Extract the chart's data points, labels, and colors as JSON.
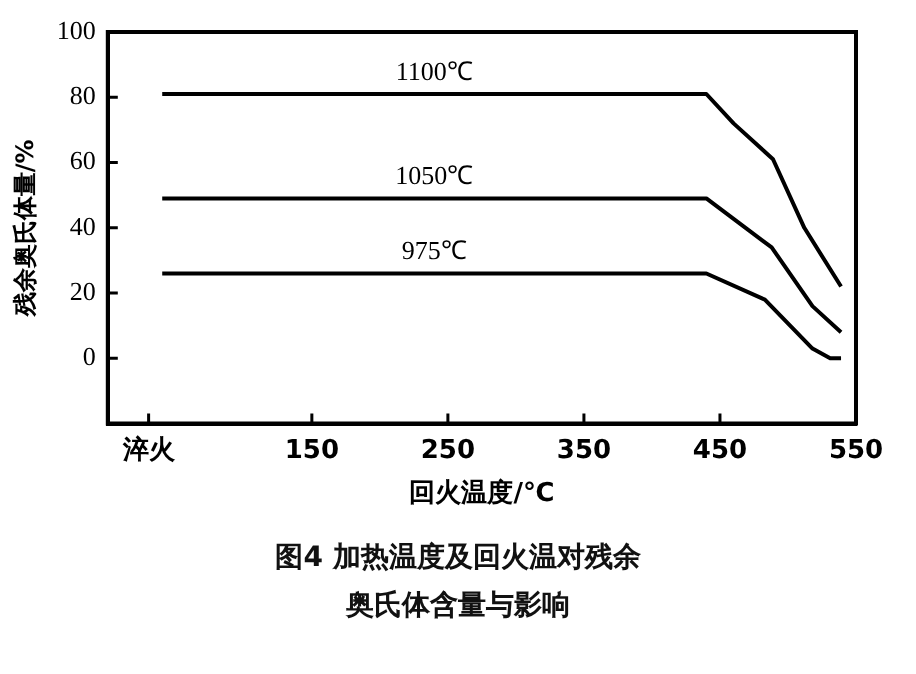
{
  "chart_data": {
    "type": "line",
    "xlabel": "回火温度/℃",
    "ylabel": "残余奥氏体量/%",
    "xlim": [
      0,
      550
    ],
    "xticks": [
      {
        "value": 30,
        "label": "淬火"
      },
      150,
      250,
      350,
      450,
      550
    ],
    "ylim": [
      -20,
      100
    ],
    "yticks": [
      0,
      20,
      40,
      60,
      80,
      100
    ],
    "grid": false,
    "legend": false,
    "marker": "none",
    "line_style": "solid",
    "series": [
      {
        "name": "1100℃",
        "color": "#000000",
        "x": [
          40,
          440,
          460,
          489,
          512,
          539
        ],
        "values": [
          81,
          81,
          72,
          61,
          40,
          22
        ]
      },
      {
        "name": "1050℃",
        "color": "#000000",
        "x": [
          40,
          440,
          488,
          518,
          539
        ],
        "values": [
          49,
          49,
          34,
          16,
          8
        ]
      },
      {
        "name": "975℃",
        "color": "#000000",
        "x": [
          40,
          440,
          483,
          518,
          531,
          539
        ],
        "values": [
          26,
          26,
          18,
          3,
          0,
          0
        ]
      }
    ],
    "annotations": [
      "图4  加热温度及回火温对残余",
      "奥氏体含量与影响"
    ]
  }
}
